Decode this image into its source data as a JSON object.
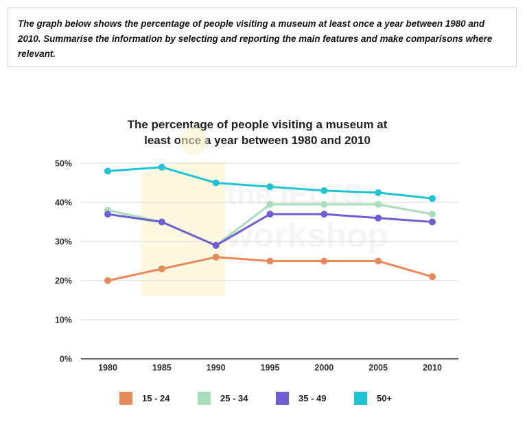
{
  "prompt": {
    "text": "The graph below shows the percentage of people visiting a museum at least once a year between 1980 and 2010. Summarise the information by selecting and reporting the main features and make comparisons where relevant."
  },
  "watermark": {
    "line1": "the IELTS",
    "line2": "workshop"
  },
  "colors": {
    "15 - 24": "#E8895A",
    "25 - 34": "#A8DEB9",
    "35 - 49": "#6E5FD0",
    "50+": "#1FC4D4",
    "grid": "#DDDDDD",
    "axis": "#333333"
  },
  "chart_data": {
    "type": "line",
    "title_line1": "The percentage of people visiting a museum at",
    "title_line2": "least once a year between 1980 and 2010",
    "xlabel": "",
    "ylabel": "",
    "x": [
      "1980",
      "1985",
      "1990",
      "1995",
      "2000",
      "2005",
      "2010"
    ],
    "ylim": [
      0,
      50
    ],
    "yticks": [
      0,
      10,
      20,
      30,
      40,
      50
    ],
    "ytick_labels": [
      "0%",
      "10%",
      "20%",
      "30%",
      "40%",
      "50%"
    ],
    "grid": true,
    "legend_position": "bottom",
    "series": [
      {
        "name": "15 - 24",
        "values": [
          20,
          23,
          26,
          25,
          25,
          25,
          21
        ]
      },
      {
        "name": "25 - 34",
        "values": [
          38,
          35,
          29,
          39.5,
          39.5,
          39.5,
          37
        ]
      },
      {
        "name": "35 - 49",
        "values": [
          37,
          35,
          29,
          37,
          37,
          36,
          35
        ]
      },
      {
        "name": "50+",
        "values": [
          48,
          49,
          45,
          44,
          43,
          42.5,
          41
        ]
      }
    ]
  }
}
